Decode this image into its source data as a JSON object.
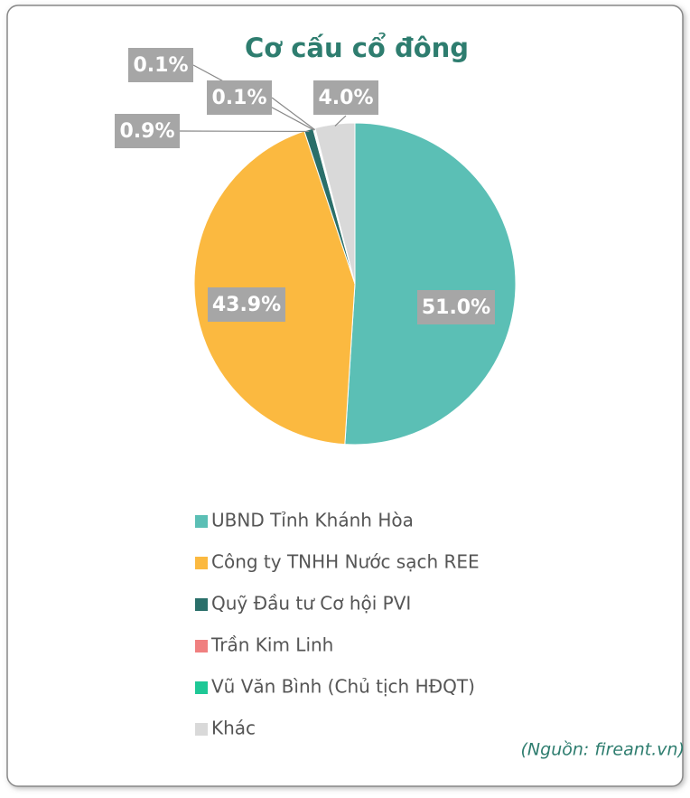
{
  "chart_data": {
    "type": "pie",
    "title": "Cơ cấu cổ đông",
    "categories": [
      "UBND Tỉnh Khánh Hòa",
      "Công ty TNHH Nước sạch REE",
      "Quỹ Đầu tư Cơ hội PVI",
      "Trần Kim Linh",
      "Vũ Văn Bình (Chủ tịch HĐQT)",
      "Khác"
    ],
    "values": [
      51.0,
      43.9,
      0.9,
      0.1,
      0.1,
      4.0
    ],
    "value_labels": [
      "51.0%",
      "43.9%",
      "0.9%",
      "0.1%",
      "0.1%",
      "4.0%"
    ],
    "colors": [
      "#5bbfb5",
      "#fbb940",
      "#2a6f6a",
      "#f08080",
      "#1ec896",
      "#d9d9d9"
    ],
    "legend": "bottom",
    "source": "(Nguồn: fireant.vn)"
  }
}
